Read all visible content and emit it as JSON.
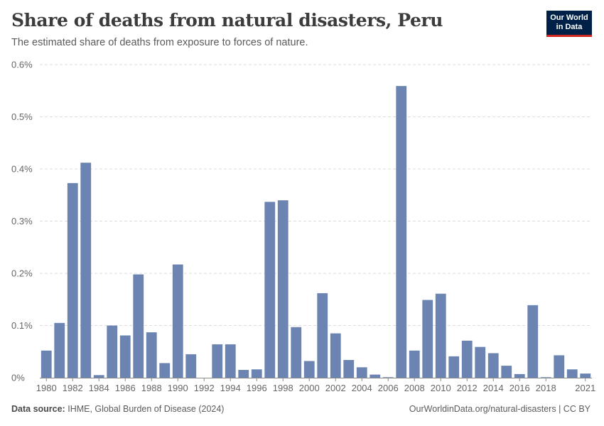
{
  "header": {
    "title": "Share of deaths from natural disasters, Peru",
    "subtitle": "The estimated share of deaths from exposure to forces of nature."
  },
  "logo": {
    "line1": "Our World",
    "line2": "in Data"
  },
  "footer": {
    "source_label": "Data source:",
    "source_text": "IHME, Global Burden of Disease (2024)",
    "url_text": "OurWorldinData.org/natural-disasters | CC BY"
  },
  "colors": {
    "bar": "#6b84b1",
    "grid": "#dddddd",
    "axis": "#8a8a8a",
    "tick_text": "#666666"
  },
  "chart_data": {
    "type": "bar",
    "title": "Share of deaths from natural disasters, Peru",
    "subtitle": "The estimated share of deaths from exposure to forces of nature.",
    "xlabel": "",
    "ylabel": "",
    "y_unit": "%",
    "ylim": [
      0,
      0.6
    ],
    "yticks": [
      0,
      0.1,
      0.2,
      0.3,
      0.4,
      0.5,
      0.6
    ],
    "ytick_labels": [
      "0%",
      "0.1%",
      "0.2%",
      "0.3%",
      "0.4%",
      "0.5%",
      "0.6%"
    ],
    "xtick_labels": [
      "1980",
      "1982",
      "1984",
      "1986",
      "1988",
      "1990",
      "1992",
      "1994",
      "1996",
      "1998",
      "2000",
      "2002",
      "2004",
      "2006",
      "2008",
      "2010",
      "2012",
      "2014",
      "2016",
      "2018",
      "2021"
    ],
    "grid": true,
    "categories": [
      1980,
      1981,
      1982,
      1983,
      1984,
      1985,
      1986,
      1987,
      1988,
      1989,
      1990,
      1991,
      1992,
      1993,
      1994,
      1995,
      1996,
      1997,
      1998,
      1999,
      2000,
      2001,
      2002,
      2003,
      2004,
      2005,
      2006,
      2007,
      2008,
      2009,
      2010,
      2011,
      2012,
      2013,
      2014,
      2015,
      2016,
      2017,
      2018,
      2019,
      2020,
      2021
    ],
    "values": [
      0.052,
      0.105,
      0.373,
      0.412,
      0.005,
      0.1,
      0.081,
      0.198,
      0.087,
      0.028,
      0.217,
      0.045,
      0.0,
      0.064,
      0.064,
      0.015,
      0.016,
      0.337,
      0.34,
      0.097,
      0.032,
      0.162,
      0.085,
      0.034,
      0.02,
      0.006,
      0.001,
      0.559,
      0.052,
      0.149,
      0.161,
      0.041,
      0.071,
      0.059,
      0.047,
      0.023,
      0.007,
      0.139,
      0.001,
      0.043,
      0.016,
      0.008
    ]
  }
}
